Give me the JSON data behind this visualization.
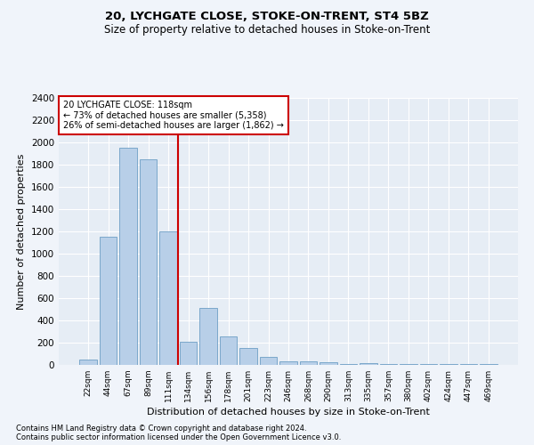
{
  "title1": "20, LYCHGATE CLOSE, STOKE-ON-TRENT, ST4 5BZ",
  "title2": "Size of property relative to detached houses in Stoke-on-Trent",
  "xlabel": "Distribution of detached houses by size in Stoke-on-Trent",
  "ylabel": "Number of detached properties",
  "categories": [
    "22sqm",
    "44sqm",
    "67sqm",
    "89sqm",
    "111sqm",
    "134sqm",
    "156sqm",
    "178sqm",
    "201sqm",
    "223sqm",
    "246sqm",
    "268sqm",
    "290sqm",
    "313sqm",
    "335sqm",
    "357sqm",
    "380sqm",
    "402sqm",
    "424sqm",
    "447sqm",
    "469sqm"
  ],
  "values": [
    50,
    1150,
    1950,
    1850,
    1200,
    210,
    510,
    260,
    150,
    70,
    35,
    35,
    25,
    10,
    15,
    10,
    5,
    5,
    5,
    5,
    5
  ],
  "bar_color": "#b8cfe8",
  "bar_edge_color": "#6d9ec5",
  "vline_color": "#cc0000",
  "annotation_text": "20 LYCHGATE CLOSE: 118sqm\n← 73% of detached houses are smaller (5,358)\n26% of semi-detached houses are larger (1,862) →",
  "annotation_box_color": "#ffffff",
  "annotation_box_edge": "#cc0000",
  "ylim": [
    0,
    2400
  ],
  "yticks": [
    0,
    200,
    400,
    600,
    800,
    1000,
    1200,
    1400,
    1600,
    1800,
    2000,
    2200,
    2400
  ],
  "footnote1": "Contains HM Land Registry data © Crown copyright and database right 2024.",
  "footnote2": "Contains public sector information licensed under the Open Government Licence v3.0.",
  "bg_color": "#f0f4fa",
  "plot_bg_color": "#e6edf5"
}
